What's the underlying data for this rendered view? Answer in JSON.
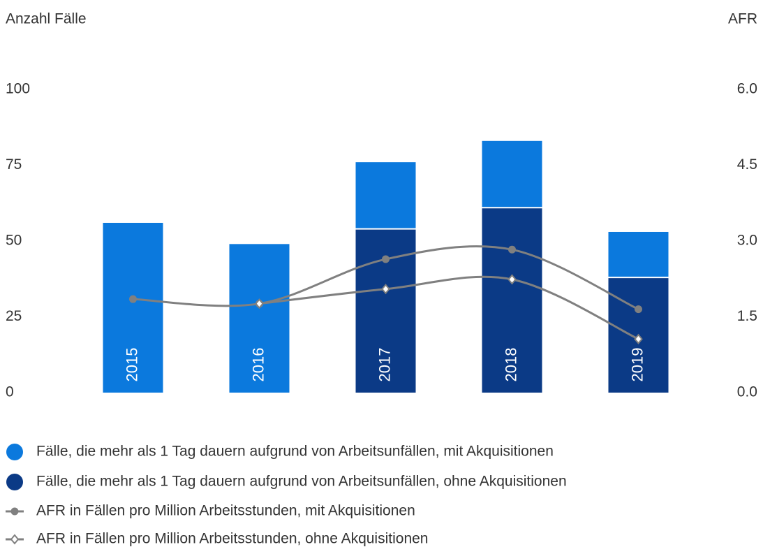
{
  "chart_data": {
    "type": "bar",
    "ylabel": "Anzahl Fälle",
    "y2label": "AFR",
    "categories": [
      "2015",
      "2016",
      "2017",
      "2018",
      "2019"
    ],
    "ylim": [
      0,
      100
    ],
    "yticks": [
      0,
      25,
      50,
      75,
      100
    ],
    "y2lim": [
      0,
      6
    ],
    "y2ticks": [
      {
        "value": 0,
        "label": "0.0"
      },
      1.5,
      {
        "value": 3,
        "label": "3.0"
      },
      4.5,
      {
        "value": 6,
        "label": "6.0"
      }
    ],
    "stacked": true,
    "series": [
      {
        "name": "Fälle, die mehr als 1 Tag dauern aufgrund von Arbeitsunfällen, mit Akquisitionen",
        "color": "#0b79dd",
        "values": [
          56,
          49,
          22,
          22,
          15
        ]
      },
      {
        "name": "Fälle, die mehr als 1 Tag dauern aufgrund von Arbeitsunfällen, ohne Akquisitionen",
        "color": "#0b3a86",
        "values": [
          null,
          null,
          54,
          61,
          38
        ]
      },
      {
        "name": "AFR in Fällen pro Million Arbeitsstunden, mit Akquisitionen",
        "color": "#808080",
        "type": "line",
        "marker": "circle",
        "axis": "y2",
        "values": [
          1.85,
          1.76,
          2.64,
          2.83,
          1.65
        ]
      },
      {
        "name": "AFR in Fällen pro Million Arbeitsstunden, ohne Akquisitionen",
        "color": "#808080",
        "type": "line",
        "marker": "diamond",
        "axis": "y2",
        "values": [
          null,
          1.76,
          2.05,
          2.24,
          1.06
        ]
      }
    ]
  }
}
